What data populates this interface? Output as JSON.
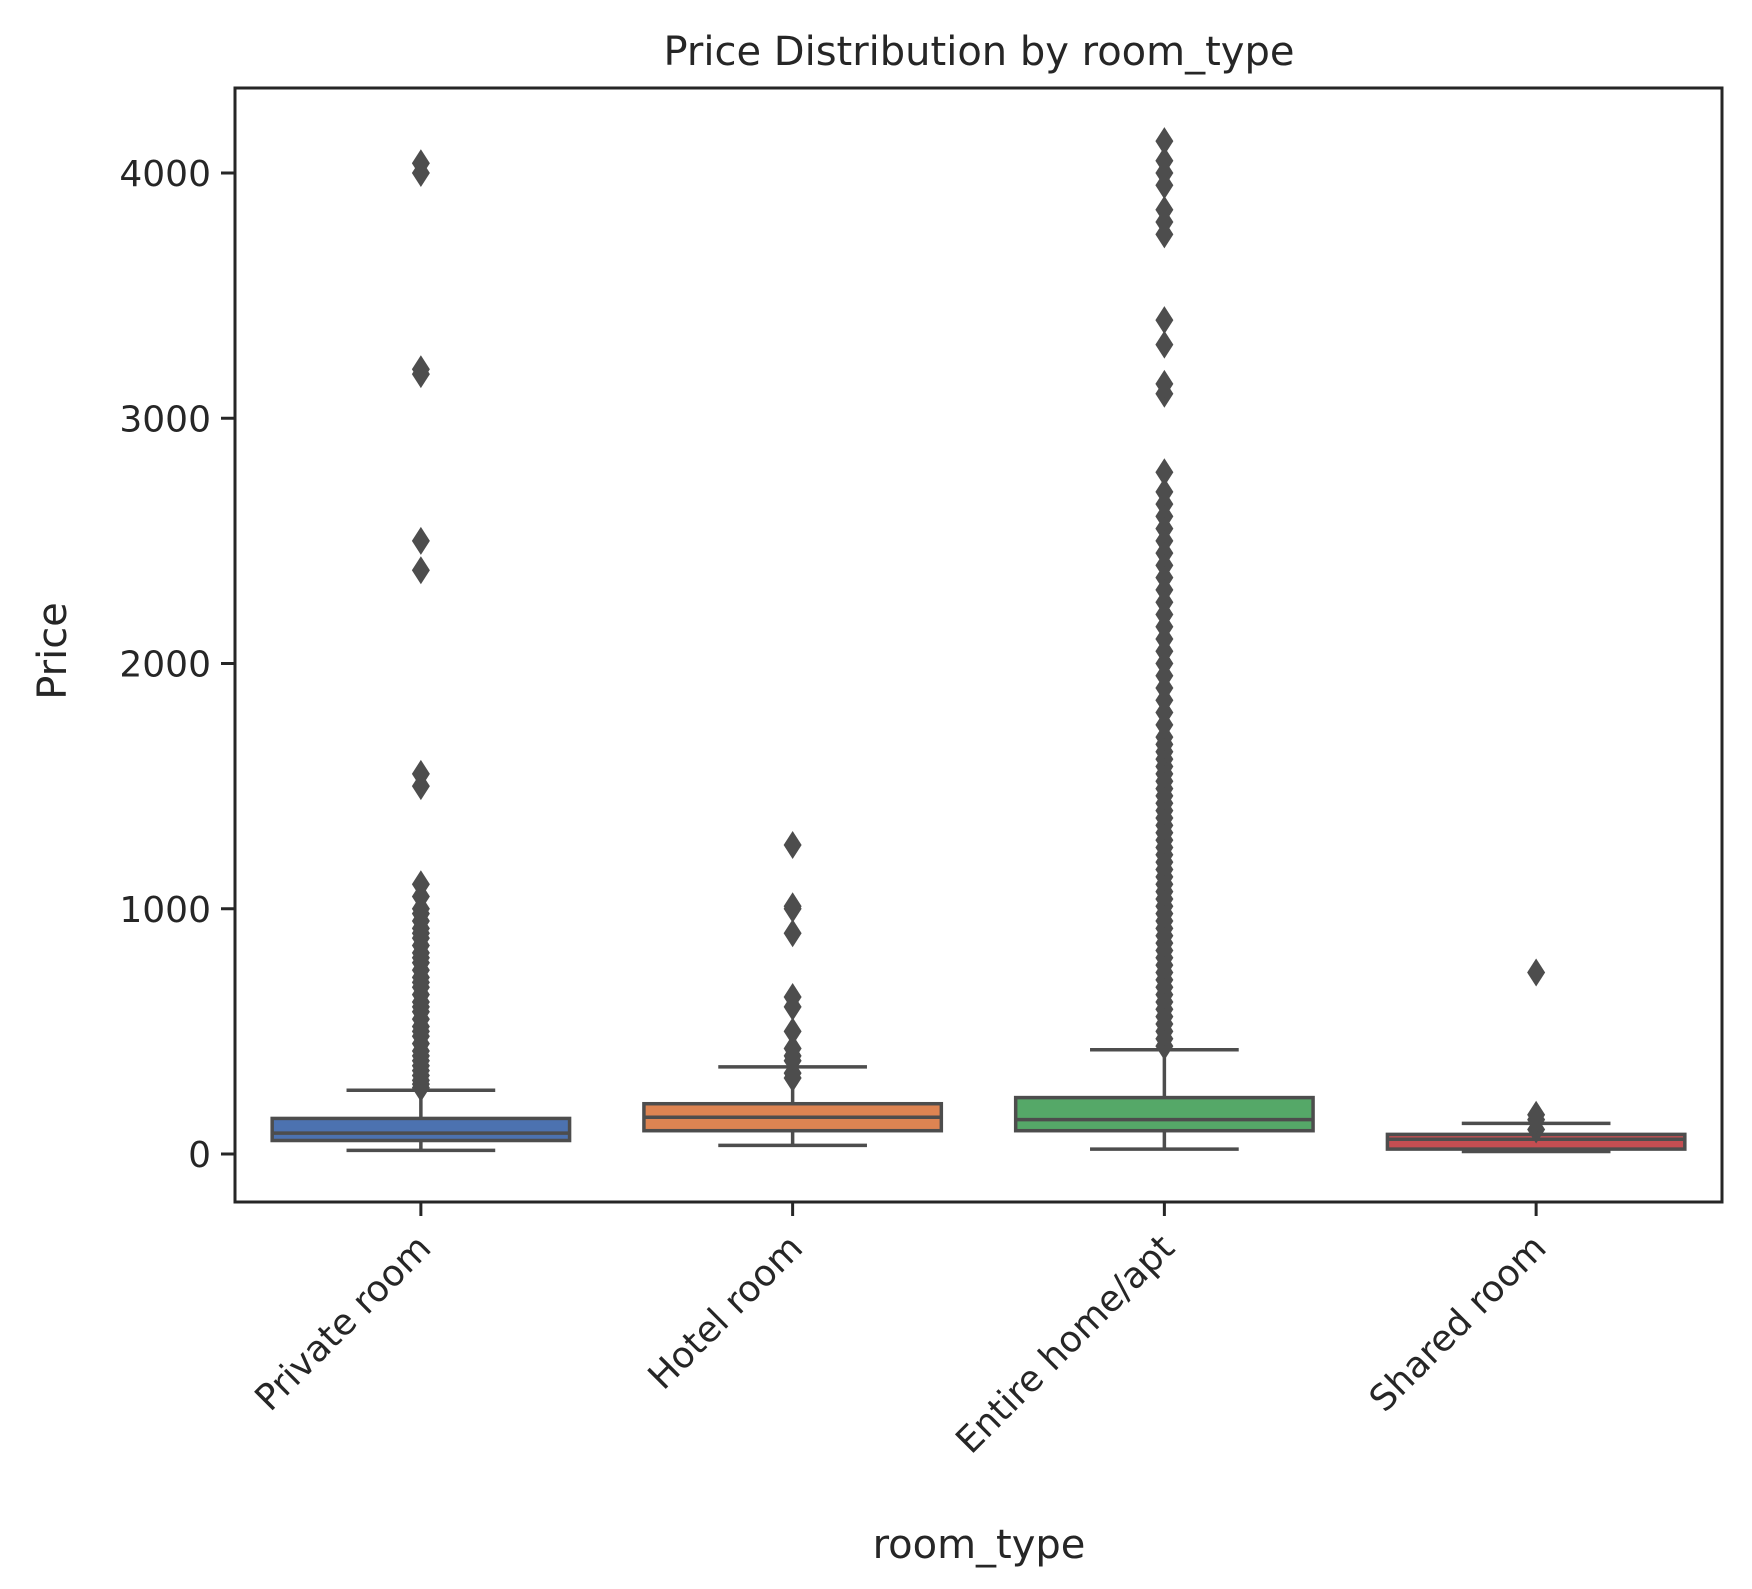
{
  "chart_data": {
    "type": "box",
    "title": "Price Distribution by room_type",
    "xlabel": "room_type",
    "ylabel": "Price",
    "ylim": [
      -200,
      4330
    ],
    "yticks": [
      0,
      1000,
      2000,
      3000,
      4000
    ],
    "grid": false,
    "legend": "none",
    "categories": [
      "Private room",
      "Hotel room",
      "Entire home/apt",
      "Shared room"
    ],
    "colors": [
      "#4c72b0",
      "#dd8452",
      "#55a868",
      "#c44e52"
    ],
    "outline_color": "#4d4d4d",
    "boxes": [
      {
        "category": "Private room",
        "whisker_low": 15,
        "q1": 55,
        "median": 85,
        "q3": 145,
        "whisker_high": 260,
        "outliers": [
          270,
          285,
          300,
          320,
          340,
          360,
          380,
          400,
          420,
          450,
          480,
          500,
          520,
          550,
          580,
          600,
          620,
          650,
          680,
          700,
          720,
          750,
          780,
          800,
          820,
          850,
          880,
          900,
          920,
          950,
          980,
          1000,
          1050,
          1100,
          1500,
          1550,
          2380,
          2500,
          3180,
          3200,
          4000,
          4040
        ]
      },
      {
        "category": "Hotel room",
        "whisker_low": 35,
        "q1": 95,
        "median": 150,
        "q3": 205,
        "whisker_high": 355,
        "outliers": [
          310,
          330,
          380,
          400,
          430,
          500,
          600,
          640,
          900,
          1000,
          1010,
          1260
        ]
      },
      {
        "category": "Entire home/apt",
        "whisker_low": 20,
        "q1": 95,
        "median": 140,
        "q3": 230,
        "whisker_high": 425,
        "outliers": [
          440,
          470,
          500,
          530,
          560,
          590,
          620,
          650,
          680,
          710,
          740,
          770,
          800,
          830,
          860,
          890,
          920,
          950,
          980,
          1010,
          1040,
          1070,
          1100,
          1130,
          1160,
          1190,
          1220,
          1250,
          1280,
          1310,
          1340,
          1370,
          1400,
          1430,
          1460,
          1490,
          1520,
          1550,
          1580,
          1610,
          1640,
          1670,
          1700,
          1750,
          1800,
          1850,
          1900,
          1950,
          2000,
          2050,
          2100,
          2150,
          2200,
          2250,
          2300,
          2350,
          2400,
          2450,
          2500,
          2550,
          2600,
          2650,
          2700,
          2780,
          3100,
          3140,
          3300,
          3400,
          3750,
          3800,
          3850,
          3950,
          4000,
          4050,
          4130
        ]
      },
      {
        "category": "Shared room",
        "whisker_low": 10,
        "q1": 20,
        "median": 60,
        "q3": 80,
        "whisker_high": 125,
        "outliers": [
          100,
          140,
          160,
          740
        ]
      }
    ]
  }
}
